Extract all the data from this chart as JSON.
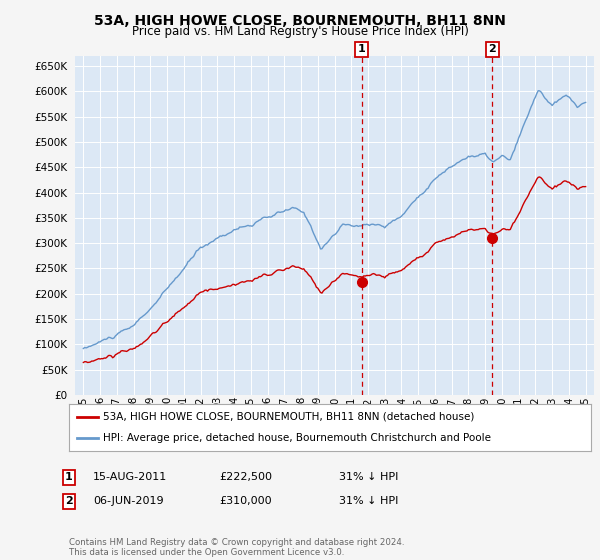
{
  "title": "53A, HIGH HOWE CLOSE, BOURNEMOUTH, BH11 8NN",
  "subtitle": "Price paid vs. HM Land Registry's House Price Index (HPI)",
  "ylim": [
    0,
    670000
  ],
  "yticks": [
    0,
    50000,
    100000,
    150000,
    200000,
    250000,
    300000,
    350000,
    400000,
    450000,
    500000,
    550000,
    600000,
    650000
  ],
  "xlim_start": 1994.5,
  "xlim_end": 2025.5,
  "background_color": "#f5f5f5",
  "plot_bg_color": "#dce8f5",
  "grid_color": "#c8d8e8",
  "legend_label_red": "53A, HIGH HOWE CLOSE, BOURNEMOUTH, BH11 8NN (detached house)",
  "legend_label_blue": "HPI: Average price, detached house, Bournemouth Christchurch and Poole",
  "sale1_date": 2011.625,
  "sale1_price": 222500,
  "sale1_label": "1",
  "sale2_date": 2019.43,
  "sale2_price": 310000,
  "sale2_label": "2",
  "footer": "Contains HM Land Registry data © Crown copyright and database right 2024.\nThis data is licensed under the Open Government Licence v3.0.",
  "table_row1": [
    "1",
    "15-AUG-2011",
    "£222,500",
    "31% ↓ HPI"
  ],
  "table_row2": [
    "2",
    "06-JUN-2019",
    "£310,000",
    "31% ↓ HPI"
  ],
  "red_color": "#cc0000",
  "blue_color": "#6699cc",
  "title_fontsize": 10,
  "subtitle_fontsize": 8.5
}
